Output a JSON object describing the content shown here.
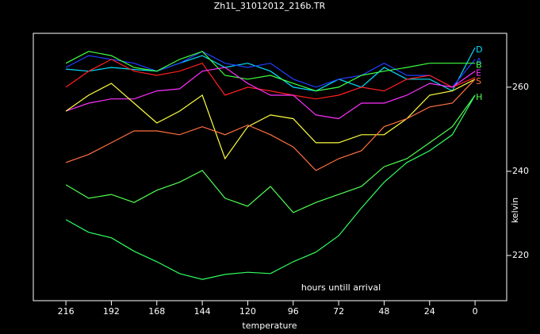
{
  "chart_data": {
    "type": "line",
    "title": "Zh1L_31012012_216b.TR",
    "xlabel": "temperature",
    "ylabel": "kelvin",
    "annotation": "hours untill arrival",
    "x": [
      216,
      204,
      192,
      180,
      168,
      156,
      144,
      132,
      120,
      108,
      96,
      84,
      72,
      60,
      48,
      36,
      24,
      12,
      0
    ],
    "xlim": [
      233.2,
      -16.7
    ],
    "xticks": [
      216,
      192,
      168,
      144,
      120,
      96,
      72,
      48,
      24,
      0
    ],
    "ylim": [
      209.25,
      272.8
    ],
    "yticks": [
      220,
      240,
      260
    ],
    "series": [
      {
        "name": "D",
        "color": "#00e0ff",
        "values": [
          264.3,
          263.8,
          264.7,
          264.2,
          263.8,
          265.7,
          267.5,
          264.7,
          265.7,
          263.8,
          260,
          259.1,
          261.9,
          260,
          264.7,
          261.9,
          261.9,
          259.1,
          269.4
        ]
      },
      {
        "name": "A",
        "color": "#2040ff",
        "values": [
          264.7,
          267.5,
          266.6,
          265.7,
          263.8,
          265.7,
          268.5,
          265.7,
          264.7,
          265.7,
          261.9,
          260,
          261.9,
          262.8,
          265.7,
          262.8,
          262.8,
          260,
          266.6
        ]
      },
      {
        "name": "B",
        "color": "#40ff40",
        "values": [
          265.7,
          268.5,
          267.5,
          264.7,
          263.8,
          266.6,
          268.5,
          262.8,
          261.9,
          262.8,
          260.9,
          259.1,
          260,
          262.8,
          263.8,
          264.7,
          265.7,
          265.7,
          265.7
        ]
      },
      {
        "color": "#ff2020",
        "values": [
          260,
          263.8,
          266.6,
          263.8,
          262.8,
          263.8,
          265.7,
          258.1,
          260,
          259.1,
          258.1,
          257.2,
          258.1,
          260,
          259.1,
          261.9,
          262.8,
          260,
          262.3
        ]
      },
      {
        "name": "E",
        "color": "#ff30ff",
        "values": [
          254.3,
          256.2,
          257.2,
          257.2,
          259.1,
          259.6,
          263.8,
          264.7,
          260.9,
          258.1,
          258.1,
          253.4,
          252.5,
          256.2,
          256.2,
          258.1,
          260.9,
          260,
          263.8
        ]
      },
      {
        "color": "#ffff40",
        "values": [
          254.3,
          258.1,
          260.9,
          256.2,
          251.5,
          254.3,
          258.1,
          243,
          250.6,
          253.4,
          252.5,
          246.8,
          246.8,
          248.7,
          248.7,
          252.5,
          258.1,
          259.1,
          261.9
        ]
      },
      {
        "name": "S",
        "color": "#ff7040",
        "values": [
          242.1,
          244,
          246.8,
          249.6,
          249.6,
          248.7,
          250.6,
          248.7,
          251,
          248.7,
          245.8,
          240.2,
          243,
          244.9,
          250.6,
          252.5,
          255.3,
          256.2,
          261.9
        ]
      },
      {
        "name": "H",
        "color": "#50ff50",
        "values": [
          236.8,
          233.6,
          234.5,
          232.6,
          235.5,
          237.4,
          240.2,
          233.6,
          231.7,
          236.4,
          230.2,
          232.6,
          234.5,
          236.4,
          241.1,
          243,
          246.8,
          250.6,
          258.1
        ]
      },
      {
        "color": "#30ff60",
        "values": [
          228.5,
          225.5,
          224.2,
          221,
          218.5,
          215.7,
          214.3,
          215.5,
          216,
          215.7,
          218.5,
          220.8,
          224.7,
          231.3,
          237.4,
          242.1,
          244.9,
          248.7,
          258.1
        ]
      }
    ]
  }
}
